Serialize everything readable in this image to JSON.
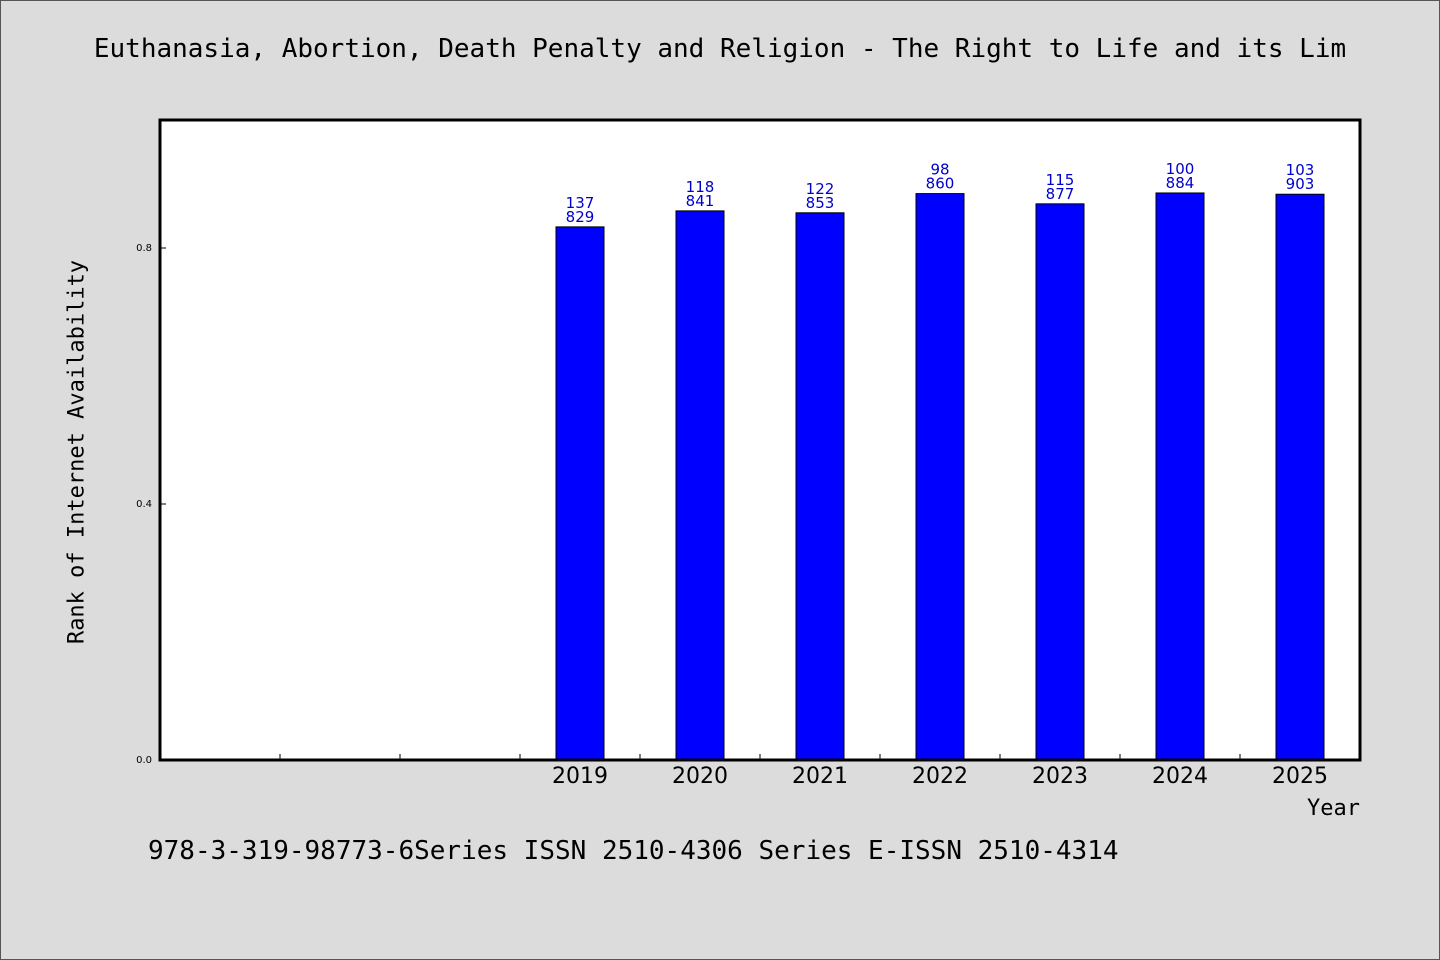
{
  "chart_data": {
    "type": "bar",
    "title": "Euthanasia, Abortion, Death Penalty and Religion - The Right to Life and its Lim",
    "xlabel": "Year",
    "ylabel": "Rank of Internet Availability",
    "ylim": [
      0,
      1.0
    ],
    "yticks": [
      0.0,
      0.4,
      0.8
    ],
    "ytick_labels": [
      "0.0",
      "0.4",
      "0.8"
    ],
    "categories": [
      "",
      "",
      "",
      "2019",
      "2020",
      "2021",
      "2022",
      "2023",
      "2024",
      "2025"
    ],
    "values": [
      null,
      null,
      null,
      0.833,
      0.858,
      0.855,
      0.885,
      0.869,
      0.886,
      0.884
    ],
    "label_top": [
      "",
      "",
      "",
      "137",
      "118",
      "122",
      "98",
      "115",
      "100",
      "103"
    ],
    "label_bottom": [
      "",
      "",
      "",
      "829",
      "841",
      "853",
      "860",
      "877",
      "884",
      "903"
    ],
    "grid": false,
    "bar_color": "#0000ff",
    "label_color": "#0000cc"
  },
  "footer": "978-3-319-98773-6Series ISSN 2510-4306 Series E-ISSN 2510-4314"
}
